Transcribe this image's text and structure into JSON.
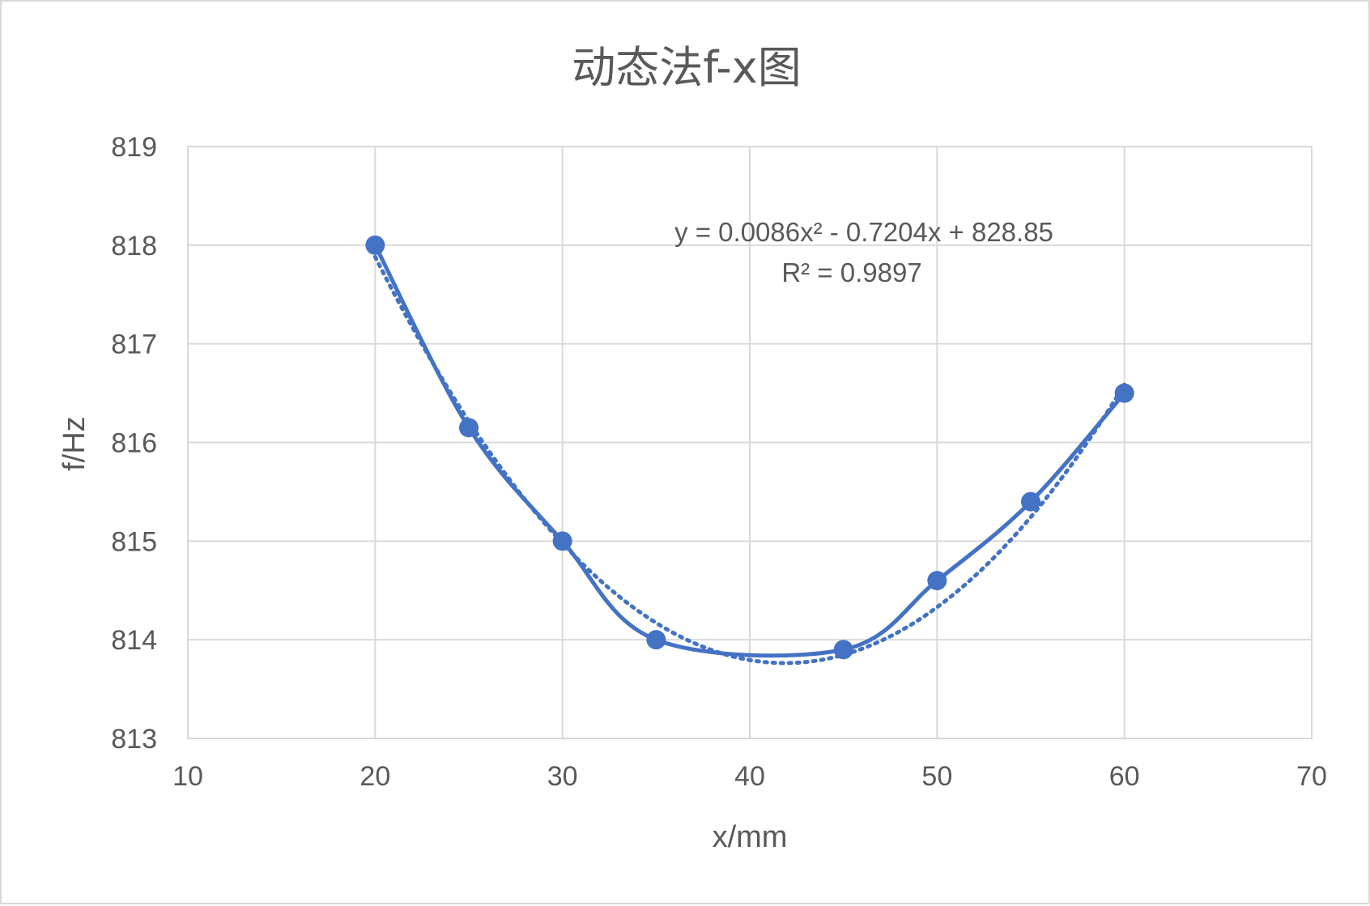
{
  "chart_data": {
    "type": "scatter",
    "title": "动态法f-x图",
    "xlabel": "x/mm",
    "ylabel": "f/Hz",
    "xlim": [
      10,
      70
    ],
    "ylim": [
      813,
      819
    ],
    "x_ticks": [
      "10",
      "20",
      "30",
      "40",
      "50",
      "60",
      "70"
    ],
    "y_ticks": [
      "813",
      "814",
      "815",
      "816",
      "817",
      "818",
      "819"
    ],
    "grid": true,
    "legend": "none",
    "series": [
      {
        "x": [
          20,
          25,
          30,
          35,
          45,
          50,
          55,
          60
        ],
        "y": [
          818.0,
          816.15,
          815.0,
          814.0,
          813.9,
          814.6,
          815.4,
          816.5
        ],
        "line": "smooth",
        "markers": true,
        "color": "#4472c4"
      }
    ],
    "trendline": {
      "type": "polynomial",
      "order": 2,
      "coefficients": [
        0.0086,
        -0.7204,
        828.85
      ],
      "style": "dotted",
      "color": "#4472c4",
      "equation_text": "y = 0.0086x² - 0.7204x + 828.85",
      "r2_text": "R² = 0.9897"
    }
  }
}
